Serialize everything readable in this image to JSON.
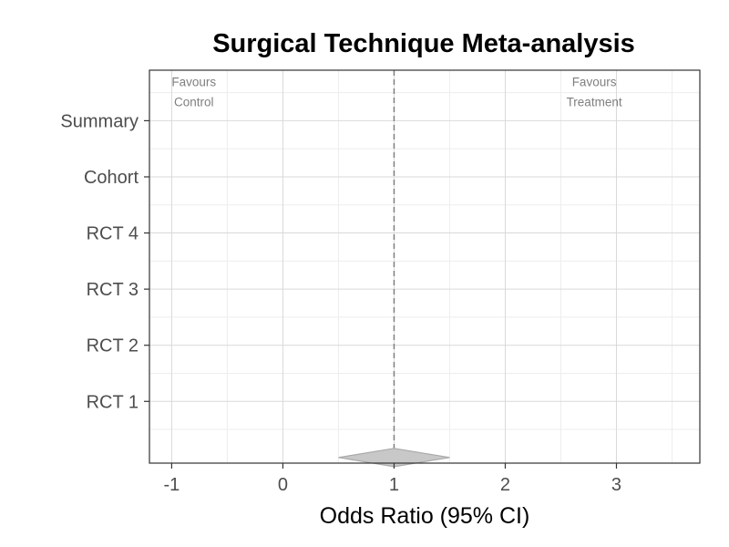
{
  "chart_data": {
    "type": "forest",
    "title": "Surgical Technique Meta-analysis",
    "xlabel": "Odds Ratio (95% CI)",
    "ylabel": "",
    "xlim": [
      -1.2,
      3.75
    ],
    "x_ticks": [
      -1,
      0,
      1,
      2,
      3
    ],
    "x_tick_labels": [
      "-1",
      "0",
      "1",
      "2",
      "3"
    ],
    "categories": [
      "RCT 1",
      "RCT 2",
      "RCT 3",
      "RCT 4",
      "Cohort",
      "Summary"
    ],
    "reference_line": 1,
    "annotations": {
      "left": [
        "Favours",
        "Control"
      ],
      "right": [
        "Favours",
        "Treatment"
      ]
    },
    "summary_diamond": {
      "estimate": 1.0,
      "lower": 0.5,
      "upper": 1.5
    },
    "grid": true,
    "colors": {
      "diamond_fill": "#c8c8c8",
      "diamond_stroke": "#a9a9a9",
      "reference_line": "#7f7f7f",
      "grid_major": "#d9d9d9",
      "grid_minor": "#ededed",
      "panel_border": "#333333"
    }
  }
}
